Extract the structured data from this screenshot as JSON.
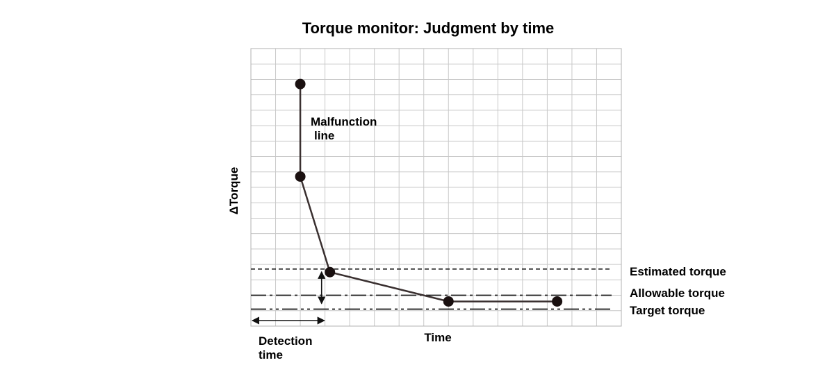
{
  "chart_data": {
    "type": "line",
    "title": "Torque monitor: Judgment by time",
    "xlabel": "Time",
    "ylabel": "ΔTorque",
    "grid": true,
    "xlim": [
      0,
      15
    ],
    "ylim": [
      0,
      18
    ],
    "series": [
      {
        "name": "Malfunction line",
        "x": [
          2,
          2,
          3.2,
          8,
          12.4
        ],
        "y": [
          15.7,
          9.7,
          3.5,
          1.6,
          1.6
        ]
      }
    ],
    "reference_lines": [
      {
        "name": "Estimated torque",
        "y": 3.7,
        "style": "dashed"
      },
      {
        "name": "Allowable torque",
        "y": 2.0,
        "style": "dash-dot"
      },
      {
        "name": "Target torque",
        "y": 1.1,
        "style": "dash-dot-dot"
      }
    ],
    "annotations": {
      "malfunction_line_1": "Malfunction",
      "malfunction_line_2": "line",
      "detection_time_1": "Detection",
      "detection_time_2": "time"
    }
  }
}
